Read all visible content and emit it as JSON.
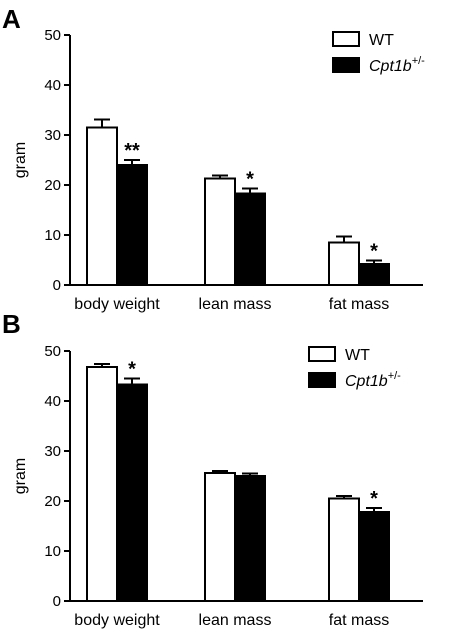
{
  "chart_data": [
    {
      "panel": "A",
      "type": "bar",
      "ylabel": "gram",
      "ylim": [
        0,
        50
      ],
      "yticks": [
        0,
        10,
        20,
        30,
        40,
        50
      ],
      "categories": [
        "body weight",
        "lean mass",
        "fat mass"
      ],
      "series": [
        {
          "name": "WT",
          "color": "#ffffff",
          "values": [
            31.5,
            21.3,
            8.5
          ],
          "errors": [
            1.6,
            0.6,
            1.2
          ]
        },
        {
          "name": "Cpt1b",
          "name_sup": "+/-",
          "color": "#000000",
          "values": [
            24.0,
            18.3,
            4.2
          ],
          "errors": [
            1.0,
            1.0,
            0.7
          ]
        }
      ],
      "annotations": [
        "**",
        "*",
        "*"
      ],
      "legend": "top-right"
    },
    {
      "panel": "B",
      "type": "bar",
      "ylabel": "gram",
      "ylim": [
        0,
        50
      ],
      "yticks": [
        0,
        10,
        20,
        30,
        40,
        50
      ],
      "categories": [
        "body weight",
        "lean mass",
        "fat mass"
      ],
      "series": [
        {
          "name": "WT",
          "color": "#ffffff",
          "values": [
            46.8,
            25.6,
            20.5
          ],
          "errors": [
            0.6,
            0.4,
            0.5
          ]
        },
        {
          "name": "Cpt1b",
          "name_sup": "+/-",
          "color": "#000000",
          "values": [
            43.3,
            25.0,
            17.8
          ],
          "errors": [
            1.2,
            0.5,
            0.8
          ]
        }
      ],
      "annotations": [
        "*",
        "",
        "*"
      ],
      "legend": "top-right"
    }
  ]
}
